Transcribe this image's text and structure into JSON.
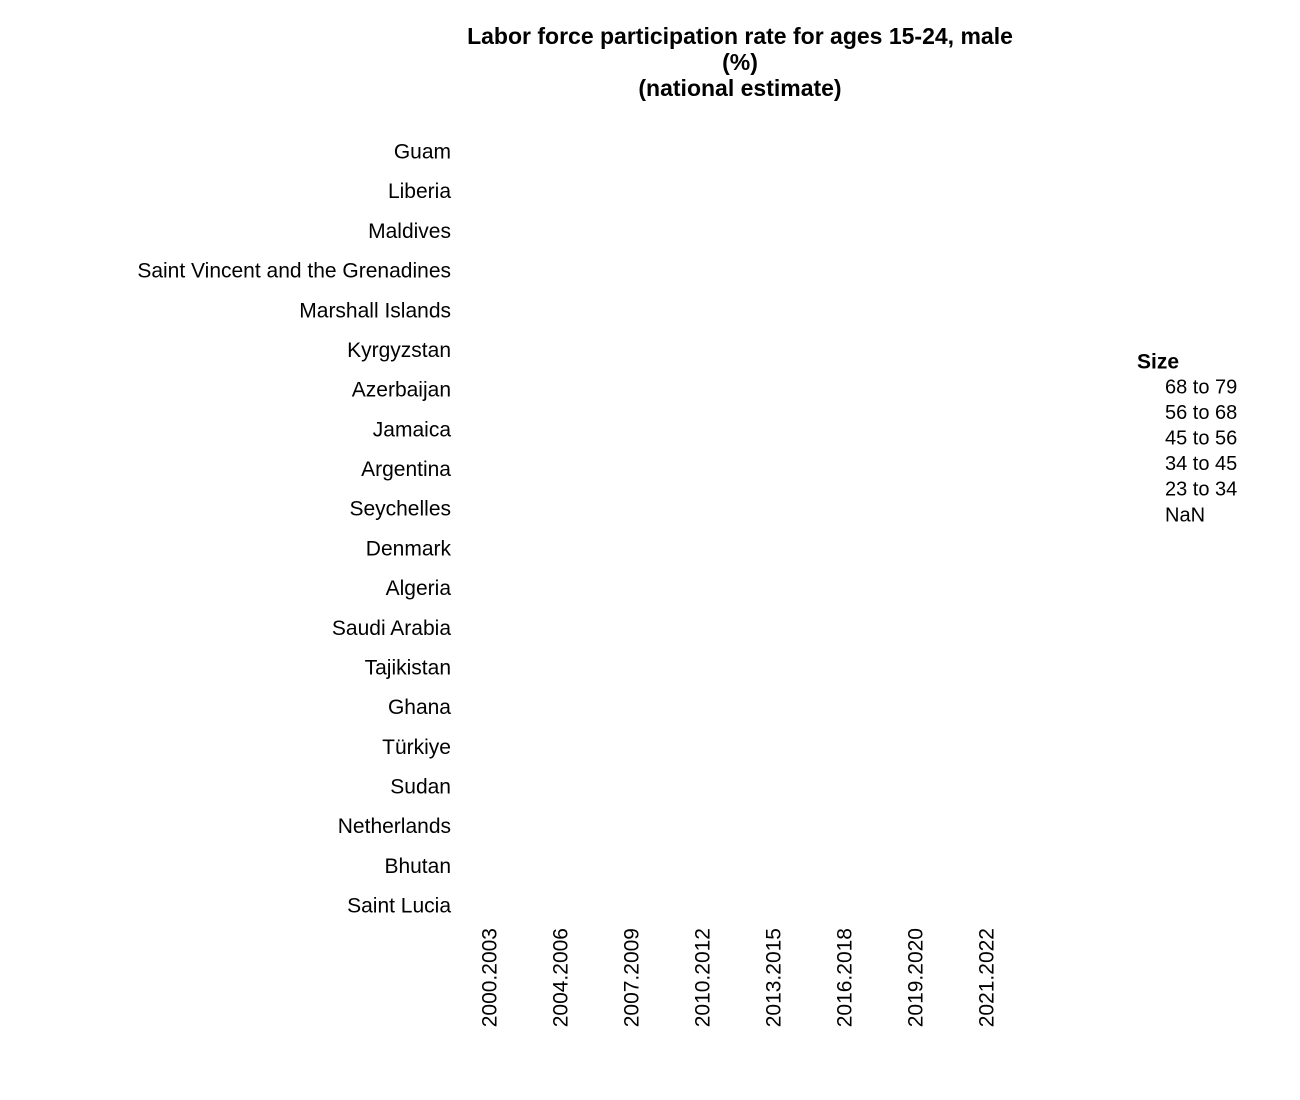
{
  "chart_data": {
    "type": "scatter",
    "title": [
      "Labor force participation rate for ages 15-24, male",
      "(%)",
      "(national estimate)"
    ],
    "xlabel": "",
    "ylabel": "",
    "categories_x": [
      "2000.2003",
      "2004.2006",
      "2007.2009",
      "2010.2012",
      "2013.2015",
      "2016.2018",
      "2019.2020",
      "2021.2022"
    ],
    "categories_y": [
      "Guam",
      "Liberia",
      "Maldives",
      "Saint Vincent and the Grenadines",
      "Marshall Islands",
      "Kyrgyzstan",
      "Azerbaijan",
      "Jamaica",
      "Argentina",
      "Seychelles",
      "Denmark",
      "Algeria",
      "Saudi Arabia",
      "Tajikistan",
      "Ghana",
      "Türkiye",
      "Sudan",
      "Netherlands",
      "Bhutan",
      "Saint Lucia"
    ],
    "points": [],
    "grid": false,
    "legend": {
      "title": "Size",
      "placement": "right",
      "items": [
        "68 to 79",
        "56 to 68",
        "45 to 56",
        "34 to 45",
        "23 to 34",
        "NaN"
      ]
    }
  }
}
